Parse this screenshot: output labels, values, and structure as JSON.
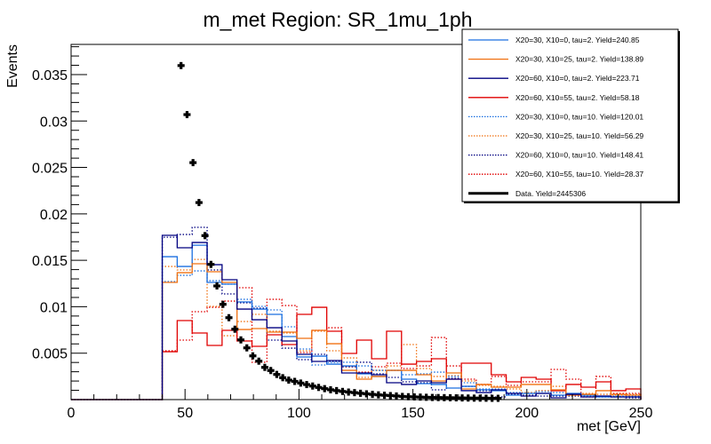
{
  "chart_data": {
    "type": "line",
    "histtype": "step",
    "title": "m_met Region: SR_1mu_1ph",
    "xlabel": "met [GeV]",
    "ylabel": "Events",
    "xlim": [
      0,
      250
    ],
    "ylim": [
      0,
      0.03825
    ],
    "xticks": [
      0,
      50,
      100,
      150,
      200,
      250
    ],
    "xtick_labels": [
      "0",
      "50",
      "100",
      "150",
      "200",
      "250"
    ],
    "yticks": [
      0.005,
      0.01,
      0.015,
      0.02,
      0.025,
      0.03,
      0.035
    ],
    "ytick_labels": [
      "0.005",
      "0.01",
      "0.015",
      "0.02",
      "0.025",
      "0.03",
      "0.035"
    ],
    "grid": false,
    "legend_position": "top-right",
    "bin_edges_start": 40,
    "bin_edges_end": 250,
    "n_bins": 32,
    "series": [
      {
        "name": "X20=30, X10=0, tau=2. Yield=240.85",
        "color": "#1a6fe0",
        "style": "solid",
        "values": [
          0.01539,
          0.01434,
          0.01663,
          0.01262,
          0.01243,
          0.01052,
          0.00975,
          0.00918,
          0.00679,
          0.00459,
          0.00468,
          0.00382,
          0.00363,
          0.00277,
          0.00249,
          0.00315,
          0.0022,
          0.00172,
          0.00163,
          0.00124,
          0.00143,
          0.00105,
          0.00096,
          0.00048,
          0.00067,
          0.00067,
          0.00048,
          0.00067,
          0.00048,
          0.00029,
          0.00029,
          0.00029
        ]
      },
      {
        "name": "X20=30, X10=25, tau=2. Yield=138.89",
        "color": "#f07010",
        "style": "solid",
        "values": [
          0.01262,
          0.01367,
          0.01463,
          0.01377,
          0.01262,
          0.00755,
          0.00765,
          0.00727,
          0.00727,
          0.0066,
          0.00746,
          0.00602,
          0.00315,
          0.0022,
          0.00249,
          0.00315,
          0.00315,
          0.00268,
          0.00201,
          0.00287,
          0.00115,
          0.00163,
          0.00134,
          0.00134,
          0.00163,
          0.00163,
          0.00105,
          0.00048,
          0.00057,
          0.00096,
          0.00057,
          0.00048
        ]
      },
      {
        "name": "X20=60, X10=0, tau=2. Yield=223.71",
        "color": "#000080",
        "style": "solid",
        "values": [
          0.01769,
          0.01635,
          0.01692,
          0.01453,
          0.01291,
          0.00975,
          0.0086,
          0.00774,
          0.00631,
          0.00488,
          0.00411,
          0.00421,
          0.00287,
          0.00287,
          0.00268,
          0.00182,
          0.00163,
          0.00201,
          0.00182,
          0.0022,
          0.00096,
          0.00076,
          0.00105,
          0.00067,
          0.00038,
          0.00067,
          0.00019,
          0.00057,
          0.00029,
          0.00038,
          0.00029,
          0.00029
        ]
      },
      {
        "name": "X20=60, X10=55, tau=2. Yield=58.18",
        "color": "#e00000",
        "style": "solid",
        "values": [
          0.00516,
          0.00851,
          0.00717,
          0.00583,
          0.00746,
          0.00631,
          0.00574,
          0.00698,
          0.00593,
          0.00918,
          0.00994,
          0.00736,
          0.00497,
          0.00641,
          0.0044,
          0.00736,
          0.00382,
          0.00411,
          0.0044,
          0.0022,
          0.00392,
          0.00392,
          0.00268,
          0.00191,
          0.00239,
          0.0022,
          0.00096,
          0.00163,
          0.00134,
          0.00191,
          0.00096,
          0.00115
        ]
      },
      {
        "name": "X20=30, X10=0, tau=10. Yield=120.01",
        "color": "#1a6fe0",
        "style": "dotted",
        "values": [
          0.01271,
          0.01338,
          0.01386,
          0.01281,
          0.01243,
          0.0108,
          0.01004,
          0.00966,
          0.00784,
          0.00545,
          0.00373,
          0.00402,
          0.00402,
          0.00363,
          0.00315,
          0.00315,
          0.00268,
          0.00277,
          0.00296,
          0.00249,
          0.00182,
          0.00115,
          0.00115,
          0.00076,
          0.00067,
          0.00086,
          0.00076,
          0.00057,
          0.00038,
          0.00029,
          0.00038,
          0.00038
        ]
      },
      {
        "name": "X20=30, X10=25, tau=10. Yield=56.29",
        "color": "#f07010",
        "style": "dotted",
        "values": [
          0.01434,
          0.01396,
          0.0151,
          0.01004,
          0.00688,
          0.00841,
          0.00918,
          0.00736,
          0.00717,
          0.00526,
          0.00736,
          0.00526,
          0.00449,
          0.00239,
          0.00315,
          0.00363,
          0.00593,
          0.00335,
          0.00249,
          0.00258,
          0.00201,
          0.00153,
          0.00143,
          0.00115,
          0.00076,
          0.00096,
          0.00143,
          0.00048,
          0.00067,
          0.00057,
          0.00048,
          0.00057
        ]
      },
      {
        "name": "X20=60, X10=0, tau=10. Yield=148.41",
        "color": "#000080",
        "style": "dotted",
        "values": [
          0.01749,
          0.01778,
          0.01855,
          0.01396,
          0.01138,
          0.01042,
          0.00985,
          0.00641,
          0.00554,
          0.0043,
          0.00488,
          0.00411,
          0.00354,
          0.00402,
          0.00277,
          0.00239,
          0.00191,
          0.00182,
          0.00105,
          0.00229,
          0.00143,
          0.00096,
          0.00029,
          0.00057,
          0.00048,
          0.00038,
          0.00038,
          0.00038,
          0.00029,
          0.00029,
          0.00029,
          0.00019
        ]
      },
      {
        "name": "X20=60, X10=55, tau=10. Yield=28.37",
        "color": "#e00000",
        "style": "dotted",
        "values": [
          0.00526,
          0.00641,
          0.00947,
          0.00994,
          0.01061,
          0.01205,
          0.00402,
          0.0108,
          0.01013,
          0.00507,
          0.00746,
          0.00774,
          0.00354,
          0.00296,
          0.00354,
          0.00392,
          0.00335,
          0.00363,
          0.00669,
          0.00363,
          0.0022,
          0.00163,
          0.00249,
          0.00153,
          0.00191,
          0.00191,
          0.00325,
          0.0022,
          0.00029,
          0.00249,
          0.00067,
          0.00067
        ]
      }
    ],
    "data_series": {
      "name": "Data. Yield=2445306",
      "color": "#000000",
      "type": "scatter",
      "x": [
        48.25,
        50.875,
        53.5,
        56.125,
        58.75,
        61.375,
        64.0,
        66.625,
        69.25,
        71.875,
        74.5,
        77.125,
        79.75,
        82.375,
        85.0,
        87.625,
        90.25,
        92.875,
        95.5,
        98.125,
        100.75,
        103.375,
        106.0,
        108.625,
        111.25,
        113.875,
        116.5,
        119.125,
        121.75,
        124.375,
        127.0,
        129.625,
        132.25,
        134.875,
        137.5,
        140.125,
        142.75,
        145.375,
        148.0,
        150.625,
        153.25,
        155.875,
        158.5,
        161.125,
        163.75,
        166.375,
        169.0,
        171.625,
        174.25,
        176.875,
        179.5,
        182.125,
        184.75,
        187.375
      ],
      "y": [
        0.03597,
        0.03069,
        0.02552,
        0.02122,
        0.01766,
        0.01456,
        0.01224,
        0.01026,
        0.00882,
        0.00758,
        0.00643,
        0.00557,
        0.00471,
        0.00414,
        0.00347,
        0.00313,
        0.00271,
        0.00236,
        0.0021,
        0.00196,
        0.00178,
        0.00162,
        0.00146,
        0.00131,
        0.00118,
        0.00106,
        0.00097,
        0.00088,
        0.00081,
        0.00075,
        0.00068,
        0.00062,
        0.00056,
        0.00051,
        0.00047,
        0.00043,
        0.00039,
        0.00034,
        0.00031,
        0.00029,
        0.00027,
        0.00025,
        0.00023,
        0.00022,
        0.00021,
        0.0002,
        0.00019,
        0.00018,
        0.00017,
        0.00016,
        0.00016,
        0.00015,
        0.00014,
        0.00014
      ]
    }
  }
}
